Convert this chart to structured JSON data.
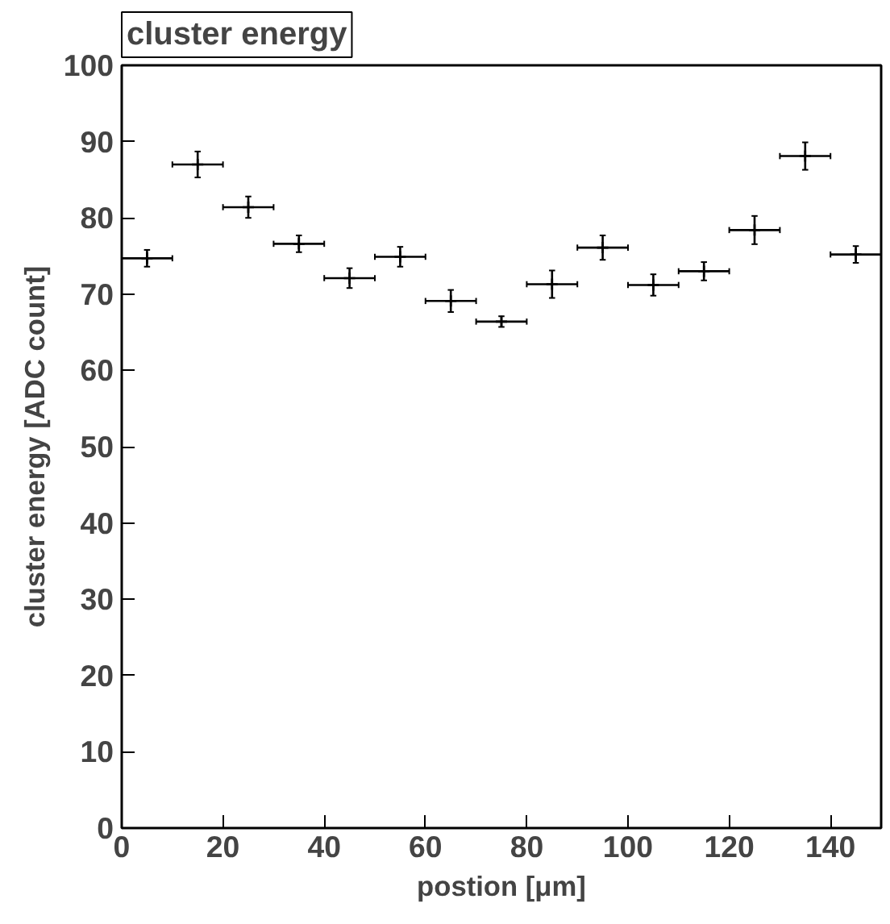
{
  "chart_data": {
    "type": "scatter",
    "title": "cluster energy",
    "xlabel": "postion [μm]",
    "ylabel": "cluster energy [ADC count]",
    "x": [
      5,
      15,
      25,
      35,
      45,
      55,
      65,
      75,
      85,
      95,
      105,
      115,
      125,
      135,
      145
    ],
    "values": [
      74.7,
      87.0,
      81.4,
      76.6,
      72.1,
      74.9,
      69.1,
      66.4,
      71.3,
      76.1,
      71.2,
      73.0,
      78.4,
      88.1,
      75.2
    ],
    "errors": [
      1.1,
      1.7,
      1.4,
      1.1,
      1.3,
      1.3,
      1.45,
      0.7,
      1.8,
      1.6,
      1.4,
      1.2,
      1.85,
      1.8,
      1.1
    ],
    "xerrors": [
      5,
      5,
      5,
      5,
      5,
      5,
      5,
      5,
      5,
      5,
      5,
      5,
      5,
      5,
      5
    ],
    "color": "#000000",
    "marker": "cross",
    "grid": false,
    "xlim": [
      0,
      150
    ],
    "ylim": [
      0,
      100
    ],
    "xticks": [
      0,
      20,
      40,
      60,
      80,
      100,
      120,
      140
    ],
    "yticks": [
      0,
      10,
      20,
      30,
      40,
      50,
      60,
      70,
      80,
      90,
      100
    ]
  }
}
